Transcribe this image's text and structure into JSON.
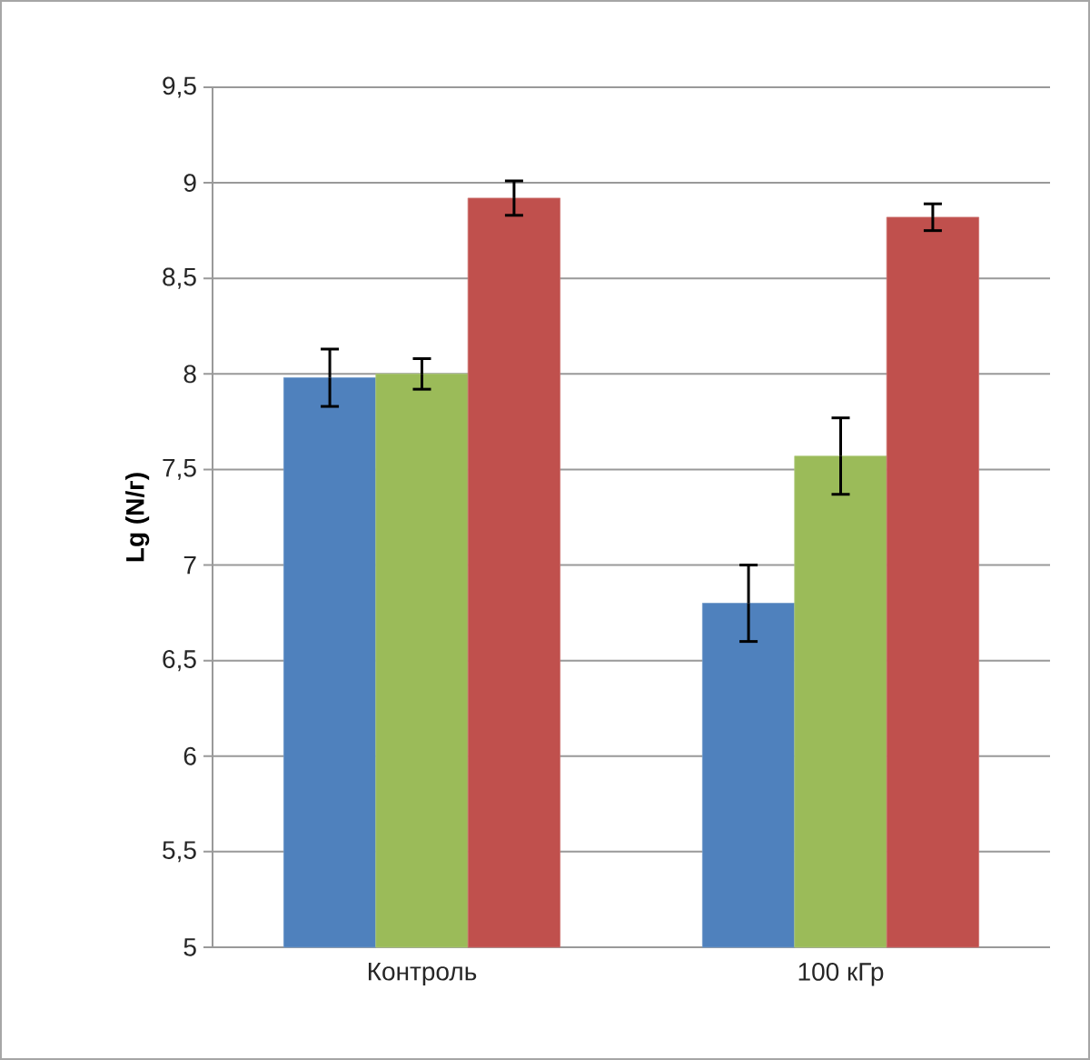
{
  "chart_data": {
    "type": "bar",
    "ylabel": "**Lg (N/г)**",
    "categories": [
      "Контроль",
      "100 кГр"
    ],
    "series": [
      {
        "color": "#4f81bd",
        "values": [
          7.98,
          6.8
        ],
        "errors": [
          0.15,
          0.2
        ]
      },
      {
        "color": "#9bbb59",
        "values": [
          8.0,
          7.57
        ],
        "errors": [
          0.08,
          0.2
        ]
      },
      {
        "color": "#c0504d",
        "values": [
          8.92,
          8.82
        ],
        "errors": [
          0.09,
          0.07
        ]
      }
    ],
    "ylim": [
      5,
      9.5
    ],
    "yticks": [
      5,
      {
        "value": 5.5,
        "label": "5,5"
      },
      6,
      {
        "value": 6.5,
        "label": "6,5"
      },
      7,
      {
        "value": 7.5,
        "label": "7,5"
      },
      8,
      {
        "value": 8.5,
        "label": "8,5"
      },
      9,
      {
        "value": 9.5,
        "label": "9,5"
      }
    ],
    "grid": "y"
  }
}
